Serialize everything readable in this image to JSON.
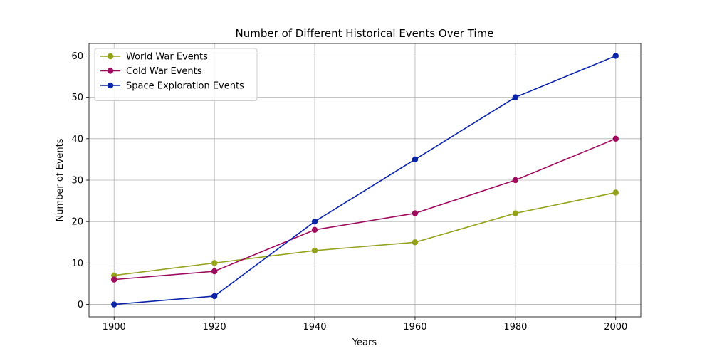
{
  "chart_data": {
    "type": "line",
    "title": "Number of Different Historical Events Over Time",
    "xlabel": "Years",
    "ylabel": "Number of Events",
    "x": [
      1900,
      1920,
      1940,
      1960,
      1980,
      2000
    ],
    "xlim": [
      1895,
      2005
    ],
    "ylim": [
      -3,
      63
    ],
    "xticks": [
      1900,
      1920,
      1940,
      1960,
      1980,
      2000
    ],
    "yticks": [
      0,
      10,
      20,
      30,
      40,
      50,
      60
    ],
    "grid": true,
    "legend_position": "top-left",
    "series": [
      {
        "name": "World War Events",
        "color": "#95a21c",
        "values": [
          7,
          10,
          13,
          15,
          22,
          27
        ]
      },
      {
        "name": "Cold War Events",
        "color": "#9e0b5e",
        "values": [
          6,
          8,
          18,
          22,
          30,
          40
        ]
      },
      {
        "name": "Space Exploration Events",
        "color": "#0b24a8",
        "values": [
          0,
          2,
          20,
          35,
          50,
          60
        ]
      }
    ]
  }
}
